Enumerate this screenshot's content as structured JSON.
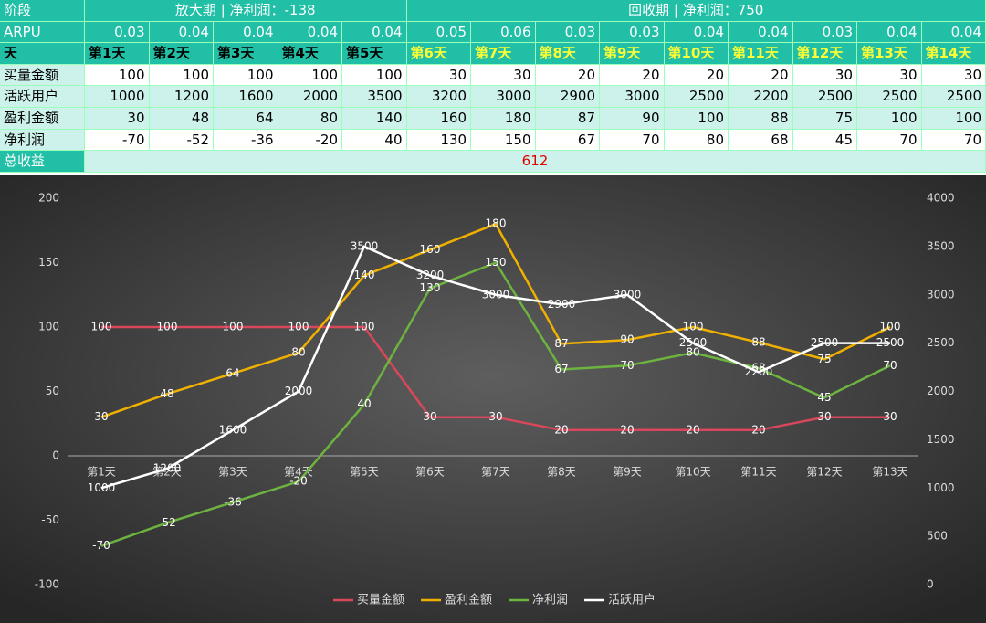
{
  "table": {
    "header": {
      "label": "阶段",
      "phase1": "放大期 | 净利润：-138",
      "phase2": "回收期 | 净利润：750"
    },
    "rows": [
      {
        "label": "ARPU",
        "cells": [
          "0.03",
          "0.04",
          "0.04",
          "0.04",
          "0.04",
          "0.05",
          "0.06",
          "0.03",
          "0.03",
          "0.04",
          "0.04",
          "0.03",
          "0.04",
          "0.04"
        ]
      },
      {
        "label": "天",
        "cells": [
          "第1天",
          "第2天",
          "第3天",
          "第4天",
          "第5天",
          "第6天",
          "第7天",
          "第8天",
          "第9天",
          "第10天",
          "第11天",
          "第12天",
          "第13天",
          "第14天"
        ]
      },
      {
        "label": "买量金额",
        "cells": [
          "100",
          "100",
          "100",
          "100",
          "100",
          "30",
          "30",
          "20",
          "20",
          "20",
          "20",
          "30",
          "30",
          "30"
        ]
      },
      {
        "label": "活跃用户",
        "cells": [
          "1000",
          "1200",
          "1600",
          "2000",
          "3500",
          "3200",
          "3000",
          "2900",
          "3000",
          "2500",
          "2200",
          "2500",
          "2500",
          "2500"
        ]
      },
      {
        "label": "盈利金额",
        "cells": [
          "30",
          "48",
          "64",
          "80",
          "140",
          "160",
          "180",
          "87",
          "90",
          "100",
          "88",
          "75",
          "100",
          "100"
        ]
      },
      {
        "label": "净利润",
        "cells": [
          "-70",
          "-52",
          "-36",
          "-20",
          "40",
          "130",
          "150",
          "67",
          "70",
          "80",
          "68",
          "45",
          "70",
          "70"
        ]
      }
    ],
    "total": {
      "label": "总收益",
      "value": "612"
    }
  },
  "chart_data": {
    "type": "line",
    "categories": [
      "第1天",
      "第2天",
      "第3天",
      "第4天",
      "第5天",
      "第6天",
      "第7天",
      "第8天",
      "第9天",
      "第10天",
      "第11天",
      "第12天",
      "第13天"
    ],
    "series": [
      {
        "name": "买量金额",
        "color": "#d9475b",
        "values": [
          100,
          100,
          100,
          100,
          100,
          30,
          30,
          20,
          20,
          20,
          20,
          30,
          30
        ]
      },
      {
        "name": "盈利金额",
        "color": "#f0b000",
        "values": [
          30,
          48,
          64,
          80,
          140,
          160,
          180,
          87,
          90,
          100,
          88,
          75,
          100
        ]
      },
      {
        "name": "净利润",
        "color": "#6db33f",
        "values": [
          -70,
          -52,
          -36,
          -20,
          40,
          130,
          150,
          67,
          70,
          80,
          68,
          45,
          70
        ]
      },
      {
        "name": "活跃用户",
        "color": "#ffffff",
        "axis": "y2",
        "values": [
          1000,
          1200,
          1600,
          2000,
          3500,
          3200,
          3000,
          2900,
          3000,
          2500,
          2200,
          2500,
          2500
        ]
      }
    ],
    "ylim": [
      -100,
      200
    ],
    "yticks": [
      -100,
      -50,
      0,
      50,
      100,
      150,
      200
    ],
    "y2lim": [
      0,
      4000
    ],
    "y2ticks": [
      0,
      500,
      1000,
      1500,
      2000,
      2500,
      3000,
      3500,
      4000
    ],
    "legend": "bottom"
  }
}
